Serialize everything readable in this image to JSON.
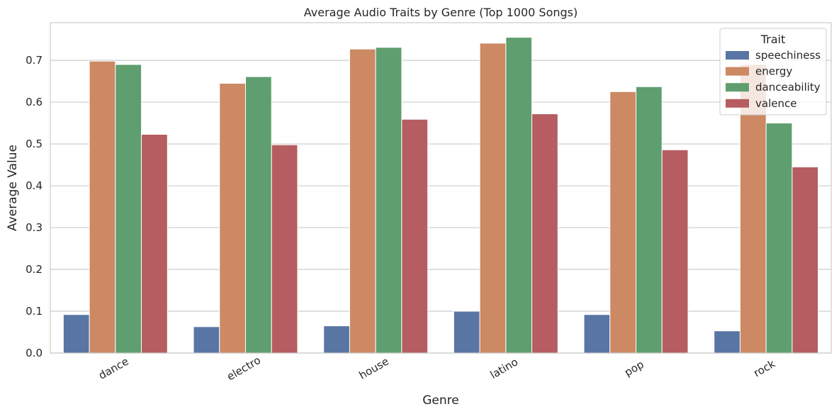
{
  "chart_data": {
    "type": "bar",
    "title": "Average Audio Traits by Genre (Top 1000 Songs)",
    "xlabel": "Genre",
    "ylabel": "Average Value",
    "ylim": [
      0,
      0.79
    ],
    "yticks": [
      "0.0",
      "0.1",
      "0.2",
      "0.3",
      "0.4",
      "0.5",
      "0.6",
      "0.7"
    ],
    "grid": "horizontal",
    "legend_position": "top-right",
    "legend_title": "Trait",
    "categories": [
      "dance",
      "electro",
      "house",
      "latino",
      "pop",
      "rock"
    ],
    "series": [
      {
        "name": "speechiness",
        "color": "#5975a4",
        "values": [
          0.092,
          0.063,
          0.065,
          0.1,
          0.092,
          0.053
        ]
      },
      {
        "name": "energy",
        "color": "#cc8963",
        "values": [
          0.698,
          0.645,
          0.727,
          0.741,
          0.625,
          0.69
        ]
      },
      {
        "name": "danceability",
        "color": "#5f9e6e",
        "values": [
          0.69,
          0.661,
          0.731,
          0.755,
          0.637,
          0.55
        ]
      },
      {
        "name": "valence",
        "color": "#b55d60",
        "values": [
          0.523,
          0.498,
          0.559,
          0.572,
          0.486,
          0.445
        ]
      }
    ]
  }
}
